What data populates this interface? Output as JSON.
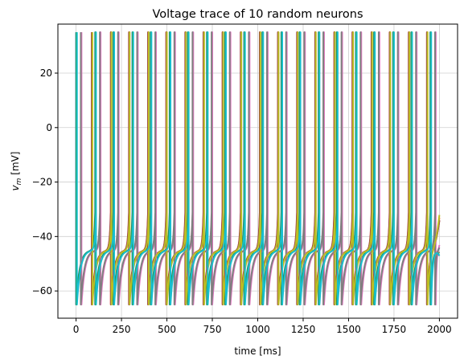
{
  "chart_data": {
    "type": "line",
    "title": "Voltage trace of 10 random neurons",
    "xlabel": "time [ms]",
    "ylabel_main": "v",
    "ylabel_sub": "m",
    "ylabel_unit": " [mV]",
    "xlim": [
      -100,
      2100
    ],
    "ylim": [
      -70,
      38
    ],
    "x_ticks": [
      0,
      250,
      500,
      750,
      1000,
      1250,
      1500,
      1750,
      2000
    ],
    "y_ticks": [
      -60,
      -40,
      -20,
      0,
      20
    ],
    "x_tick_labels": [
      "0",
      "250",
      "500",
      "750",
      "1000",
      "1250",
      "1500",
      "1750",
      "2000"
    ],
    "y_tick_labels": [
      "−60",
      "−40",
      "−20",
      "0",
      "20"
    ],
    "grid": true,
    "v_peak": 35,
    "v_reset": -65,
    "v_plateau": -45,
    "series": [
      {
        "color": "#1f77b4",
        "spike_times": [
          0,
          105,
          205,
          310,
          410,
          515,
          615,
          720,
          820,
          925,
          1025,
          1130,
          1230,
          1335,
          1435,
          1540,
          1640,
          1745,
          1845,
          1950
        ],
        "final_v": -47
      },
      {
        "color": "#ff7f0e",
        "spike_times": [
          88,
          193,
          293,
          398,
          498,
          603,
          703,
          808,
          908,
          1013,
          1113,
          1218,
          1318,
          1423,
          1523,
          1628,
          1728,
          1833,
          1933
        ],
        "final_v": -33
      },
      {
        "color": "#2ca02c",
        "spike_times": [
          2,
          107,
          207,
          312,
          412,
          517,
          617,
          722,
          822,
          927,
          1027,
          1132,
          1232,
          1337,
          1437,
          1542,
          1642,
          1747,
          1847,
          1952
        ],
        "final_v": -46
      },
      {
        "color": "#d62728",
        "spike_times": [
          86,
          191,
          291,
          396,
          496,
          601,
          701,
          806,
          906,
          1011,
          1111,
          1216,
          1316,
          1421,
          1521,
          1626,
          1726,
          1831,
          1931
        ],
        "final_v": -34
      },
      {
        "color": "#9467bd",
        "spike_times": [
          28,
          133,
          233,
          338,
          438,
          543,
          643,
          748,
          848,
          953,
          1053,
          1158,
          1258,
          1363,
          1463,
          1568,
          1668,
          1773,
          1873,
          1978
        ],
        "final_v": -44
      },
      {
        "color": "#8c564b",
        "spike_times": [
          87,
          192,
          292,
          397,
          497,
          602,
          702,
          807,
          907,
          1012,
          1112,
          1217,
          1317,
          1422,
          1522,
          1627,
          1727,
          1832,
          1932
        ],
        "final_v": -34
      },
      {
        "color": "#e377c2",
        "spike_times": [
          30,
          135,
          235,
          340,
          440,
          545,
          645,
          750,
          850,
          955,
          1055,
          1160,
          1260,
          1365,
          1465,
          1570,
          1670,
          1775,
          1875,
          1980
        ],
        "final_v": -43
      },
      {
        "color": "#7f7f7f",
        "spike_times": [
          26,
          131,
          231,
          336,
          436,
          541,
          641,
          746,
          846,
          951,
          1051,
          1156,
          1256,
          1361,
          1461,
          1566,
          1666,
          1771,
          1871,
          1976
        ],
        "final_v": -44
      },
      {
        "color": "#bcbd22",
        "spike_times": [
          90,
          195,
          295,
          400,
          500,
          605,
          705,
          810,
          910,
          1015,
          1115,
          1220,
          1320,
          1425,
          1525,
          1630,
          1730,
          1835,
          1935
        ],
        "final_v": -32
      },
      {
        "color": "#17becf",
        "spike_times": [
          5,
          110,
          210,
          315,
          415,
          520,
          620,
          725,
          825,
          930,
          1030,
          1135,
          1235,
          1340,
          1440,
          1545,
          1645,
          1750,
          1850,
          1955
        ],
        "final_v": -47
      }
    ]
  }
}
